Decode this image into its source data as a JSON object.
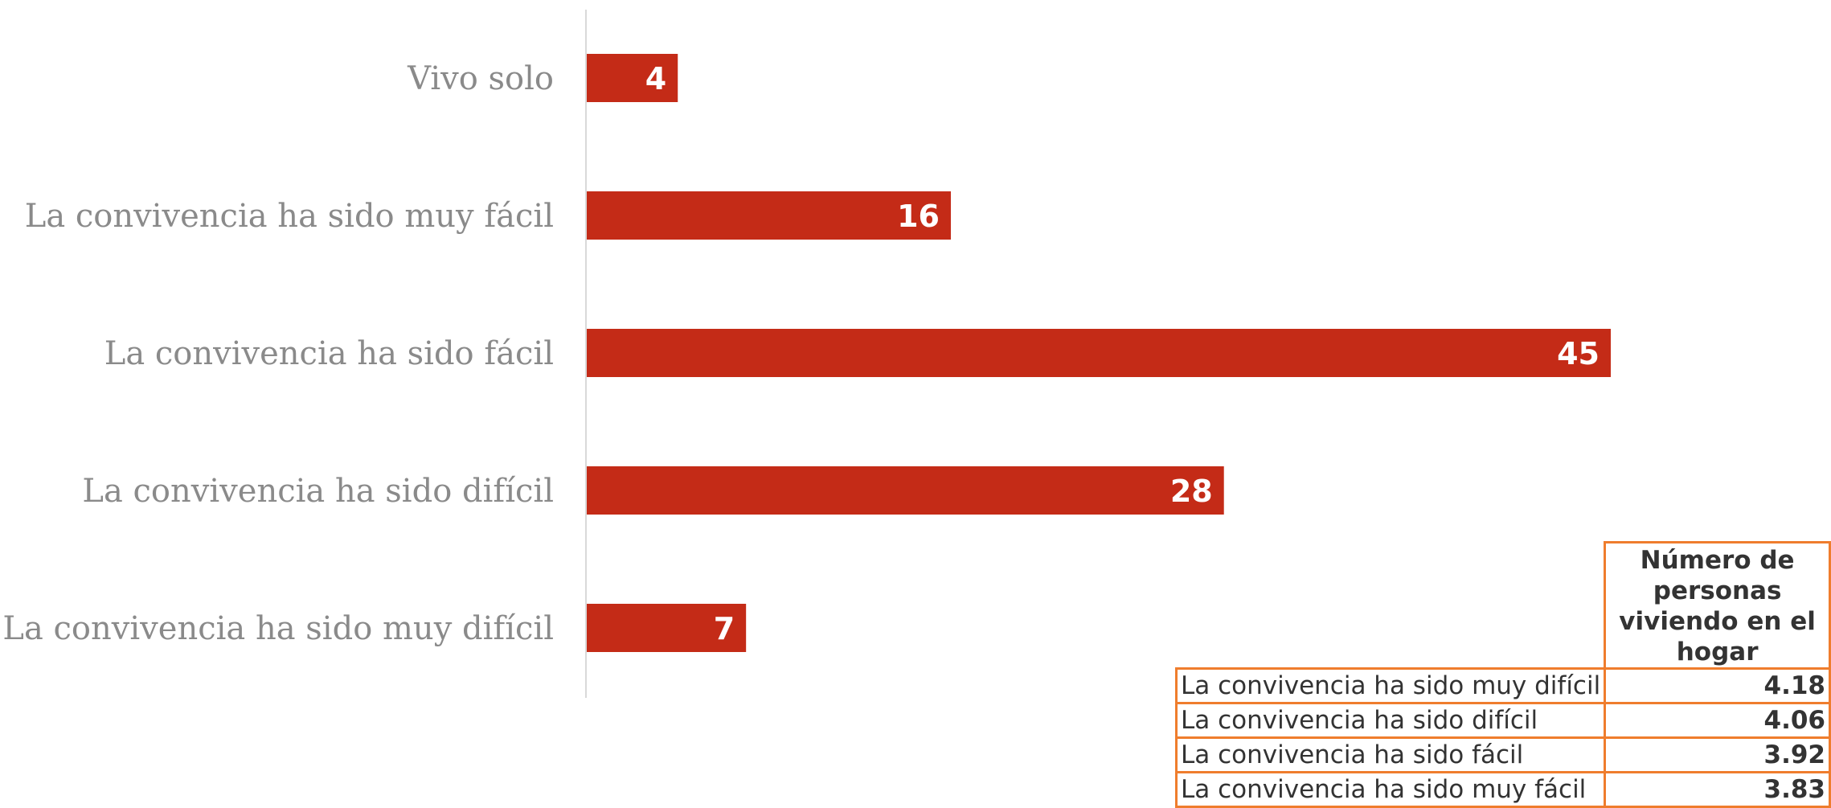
{
  "chart_data": {
    "type": "bar",
    "orientation": "horizontal",
    "categories": [
      "Vivo solo",
      "La convivencia ha sido muy fácil",
      "La convivencia ha sido fácil",
      "La convivencia ha sido difícil",
      "La convivencia ha sido muy difícil"
    ],
    "values": [
      4,
      16,
      45,
      28,
      7
    ],
    "value_labels": [
      "4",
      "16",
      "45",
      "28",
      "7"
    ],
    "title": "",
    "xlabel": "",
    "ylabel": "",
    "xlim": [
      0,
      45
    ],
    "grid": false,
    "legend": "none",
    "bar_color": "#c42b17",
    "label_color": "#ffffff"
  },
  "table": {
    "header": "Número de personas viviendo en el hogar",
    "rows": [
      {
        "label": "La convivencia ha sido muy difícil",
        "value": "4.18"
      },
      {
        "label": "La convivencia ha sido difícil",
        "value": "4.06"
      },
      {
        "label": "La convivencia ha sido fácil",
        "value": "3.92"
      },
      {
        "label": "La convivencia ha sido muy fácil",
        "value": "3.83"
      }
    ],
    "border_color": "#ef7d2d"
  }
}
